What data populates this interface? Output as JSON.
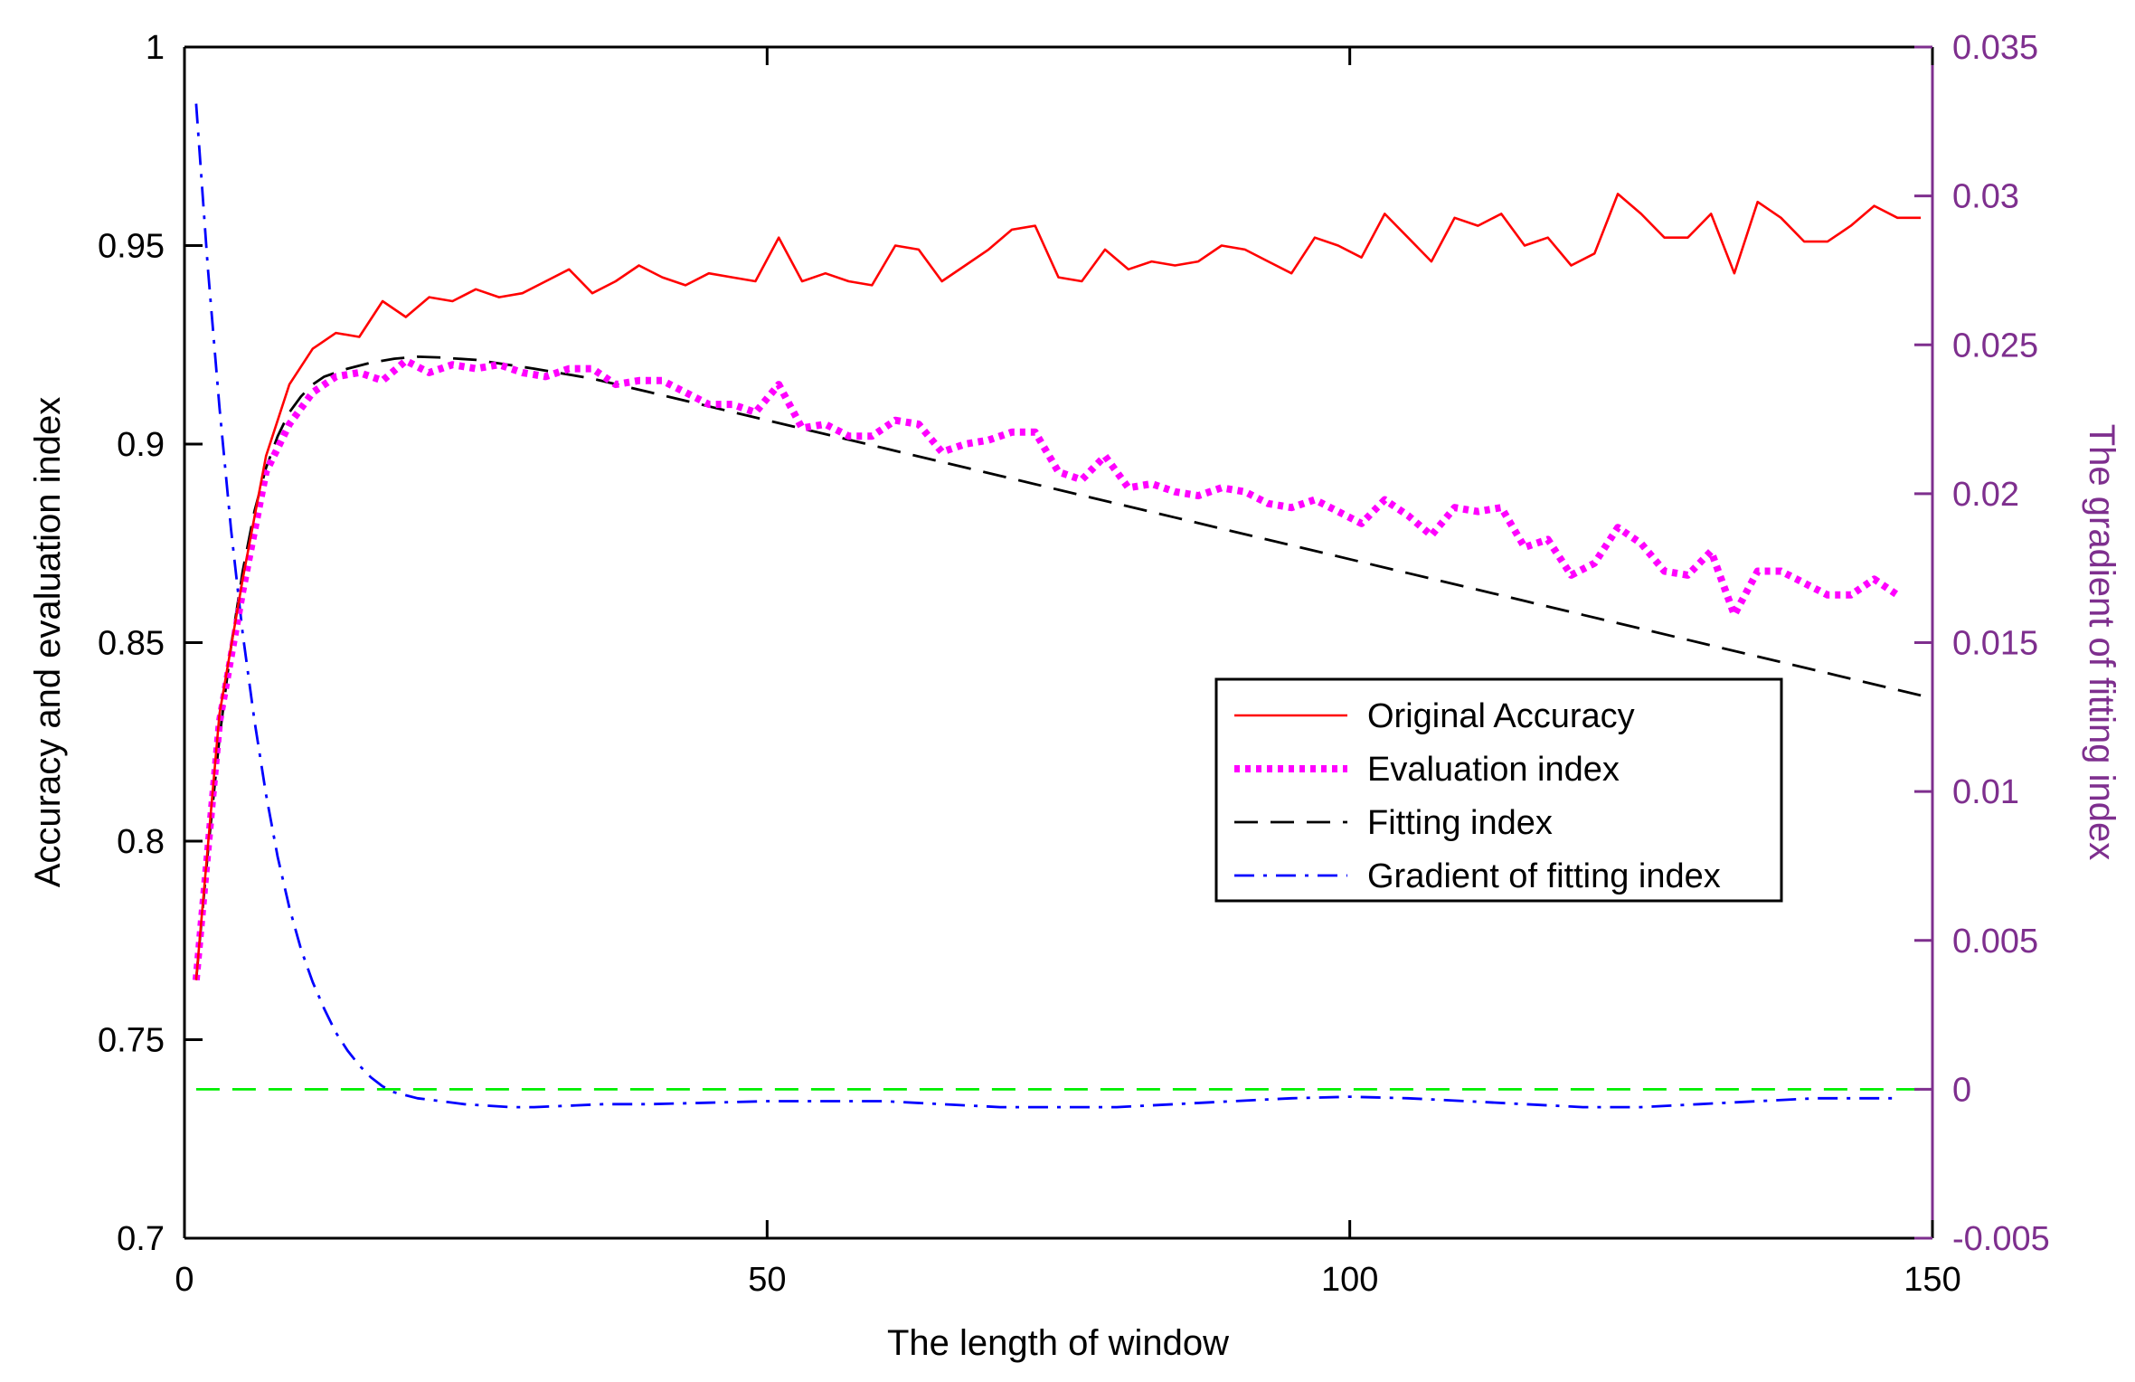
{
  "chart_data": {
    "type": "line",
    "xlabel": "The length of window",
    "ylabel": "Accuracy and evaluation index",
    "y2label": "The gradient of fitting index",
    "xlim": [
      0,
      150
    ],
    "ylim": [
      0.7,
      1.0
    ],
    "y2lim": [
      -0.005,
      0.035
    ],
    "x_ticks": [
      "0",
      "50",
      "100",
      "150"
    ],
    "y_ticks": [
      "0.7",
      "0.75",
      "0.8",
      "0.85",
      "0.9",
      "0.95",
      "1"
    ],
    "y2_ticks": [
      "-0.005",
      "0",
      "0.005",
      "0.01",
      "0.015",
      "0.02",
      "0.025",
      "0.03",
      "0.035"
    ],
    "legend_position": "center-right",
    "colors": {
      "accuracy": "#ff0000",
      "evaluation": "#ff00ff",
      "fitting": "#000000",
      "gradient": "#0000ff",
      "zero_line": "#00ee00",
      "right_axis": "#7e2f8e"
    },
    "series": [
      {
        "name": "Original Accuracy",
        "axis": "left",
        "style": "solid",
        "x": [
          1,
          3,
          5,
          7,
          9,
          11,
          13,
          15,
          17,
          19,
          21,
          23,
          25,
          27,
          29,
          31,
          33,
          35,
          37,
          39,
          41,
          43,
          45,
          47,
          49,
          51,
          53,
          55,
          57,
          59,
          61,
          63,
          65,
          67,
          69,
          71,
          73,
          75,
          77,
          79,
          81,
          83,
          85,
          87,
          89,
          91,
          93,
          95,
          97,
          99,
          101,
          103,
          105,
          107,
          109,
          111,
          113,
          115,
          117,
          119,
          121,
          123,
          125,
          127,
          129,
          131,
          133,
          135,
          137,
          139,
          141,
          143,
          145,
          147,
          149
        ],
        "y": [
          0.765,
          0.832,
          0.866,
          0.897,
          0.915,
          0.924,
          0.928,
          0.927,
          0.936,
          0.932,
          0.937,
          0.936,
          0.939,
          0.937,
          0.938,
          0.941,
          0.944,
          0.938,
          0.941,
          0.945,
          0.942,
          0.94,
          0.943,
          0.942,
          0.941,
          0.952,
          0.941,
          0.943,
          0.941,
          0.94,
          0.95,
          0.949,
          0.941,
          0.945,
          0.949,
          0.954,
          0.955,
          0.942,
          0.941,
          0.949,
          0.944,
          0.946,
          0.945,
          0.946,
          0.95,
          0.949,
          0.946,
          0.943,
          0.952,
          0.95,
          0.947,
          0.958,
          0.952,
          0.946,
          0.957,
          0.955,
          0.958,
          0.95,
          0.952,
          0.945,
          0.948,
          0.963,
          0.958,
          0.952,
          0.952,
          0.958,
          0.943,
          0.961,
          0.957,
          0.951,
          0.951,
          0.955,
          0.96,
          0.957,
          0.957
        ]
      },
      {
        "name": "Evaluation index",
        "axis": "left",
        "style": "dotted",
        "x": [
          1,
          3,
          5,
          7,
          9,
          11,
          13,
          15,
          17,
          19,
          21,
          23,
          25,
          27,
          29,
          31,
          33,
          35,
          37,
          39,
          41,
          43,
          45,
          47,
          49,
          51,
          53,
          55,
          57,
          59,
          61,
          63,
          65,
          67,
          69,
          71,
          73,
          75,
          77,
          79,
          81,
          83,
          85,
          87,
          89,
          91,
          93,
          95,
          97,
          99,
          101,
          103,
          105,
          107,
          109,
          111,
          113,
          115,
          117,
          119,
          121,
          123,
          125,
          127,
          129,
          131,
          133,
          135,
          137,
          139,
          141,
          143,
          145,
          147
        ],
        "y": [
          0.765,
          0.83,
          0.863,
          0.893,
          0.905,
          0.913,
          0.917,
          0.918,
          0.916,
          0.921,
          0.918,
          0.92,
          0.919,
          0.92,
          0.918,
          0.917,
          0.919,
          0.919,
          0.915,
          0.916,
          0.916,
          0.913,
          0.91,
          0.91,
          0.908,
          0.915,
          0.904,
          0.905,
          0.902,
          0.902,
          0.906,
          0.905,
          0.898,
          0.9,
          0.901,
          0.903,
          0.903,
          0.893,
          0.891,
          0.897,
          0.889,
          0.89,
          0.888,
          0.887,
          0.889,
          0.888,
          0.885,
          0.884,
          0.886,
          0.883,
          0.88,
          0.886,
          0.882,
          0.877,
          0.884,
          0.883,
          0.884,
          0.874,
          0.876,
          0.867,
          0.87,
          0.879,
          0.875,
          0.868,
          0.867,
          0.873,
          0.857,
          0.868,
          0.868,
          0.865,
          0.862,
          0.862,
          0.866,
          0.862
        ]
      },
      {
        "name": "Fitting index",
        "axis": "left",
        "style": "dashed",
        "x": [
          1,
          2,
          3,
          4,
          5,
          6,
          7,
          8,
          9,
          10,
          11,
          12,
          13,
          14,
          16,
          18,
          20,
          22,
          25,
          30,
          35,
          40,
          45,
          50,
          55,
          60,
          65,
          70,
          75,
          80,
          85,
          90,
          95,
          100,
          105,
          110,
          115,
          120,
          125,
          130,
          135,
          140,
          145,
          149
        ],
        "y": [
          0.765,
          0.797,
          0.826,
          0.849,
          0.868,
          0.883,
          0.894,
          0.902,
          0.908,
          0.912,
          0.915,
          0.917,
          0.918,
          0.919,
          0.9205,
          0.9215,
          0.922,
          0.9218,
          0.9212,
          0.919,
          0.9165,
          0.913,
          0.9095,
          0.906,
          0.9025,
          0.899,
          0.8955,
          0.892,
          0.8885,
          0.885,
          0.8815,
          0.878,
          0.8745,
          0.871,
          0.8675,
          0.864,
          0.8605,
          0.857,
          0.8535,
          0.85,
          0.8465,
          0.843,
          0.8395,
          0.8367
        ]
      },
      {
        "name": "Gradient of fitting index",
        "axis": "right",
        "style": "dashdot",
        "x": [
          1,
          2,
          3,
          4,
          5,
          6,
          7,
          8,
          9,
          10,
          11,
          12,
          13,
          14,
          15,
          16,
          17,
          18,
          19,
          20,
          22,
          24,
          26,
          28,
          30,
          33,
          36,
          40,
          45,
          50,
          55,
          60,
          65,
          70,
          75,
          80,
          85,
          90,
          95,
          100,
          105,
          110,
          115,
          120,
          125,
          130,
          135,
          140,
          145,
          147
        ],
        "y": [
          0.0331,
          0.0276,
          0.0229,
          0.0188,
          0.0153,
          0.0124,
          0.0099,
          0.0078,
          0.0061,
          0.0047,
          0.0036,
          0.0027,
          0.0019,
          0.0013,
          0.0008,
          0.0004,
          0.0001,
          -0.0001,
          -0.0002,
          -0.0003,
          -0.0004,
          -0.0005,
          -0.00055,
          -0.0006,
          -0.0006,
          -0.00055,
          -0.0005,
          -0.0005,
          -0.00045,
          -0.0004,
          -0.0004,
          -0.0004,
          -0.0005,
          -0.0006,
          -0.0006,
          -0.0006,
          -0.0005,
          -0.0004,
          -0.0003,
          -0.00025,
          -0.0003,
          -0.0004,
          -0.0005,
          -0.0006,
          -0.0006,
          -0.0005,
          -0.0004,
          -0.0003,
          -0.0003,
          -0.0003
        ]
      },
      {
        "name": "Zero reference",
        "axis": "right",
        "style": "long-dash",
        "legend": false,
        "x": [
          1,
          149
        ],
        "y": [
          0,
          0
        ]
      }
    ]
  }
}
